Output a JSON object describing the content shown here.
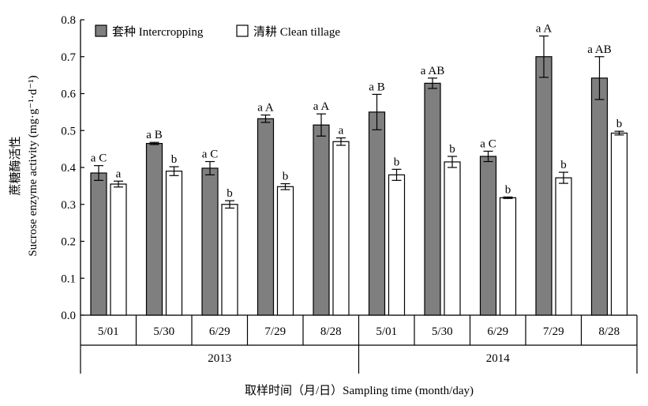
{
  "chart_data": {
    "type": "bar",
    "title": "",
    "ylabel_cn": "蔗糖酶活性",
    "ylabel_en": "Sucrose enzyme activity (mg·g⁻¹·d⁻¹)",
    "xlabel": "取样时间（月/日）Sampling time (month/day)",
    "ylim": [
      0,
      0.8
    ],
    "yticks": [
      "0.0",
      "0.1",
      "0.2",
      "0.3",
      "0.4",
      "0.5",
      "0.6",
      "0.7",
      "0.8"
    ],
    "categories": [
      "5/01",
      "5/30",
      "6/29",
      "7/29",
      "8/28",
      "5/01",
      "5/30",
      "6/29",
      "7/29",
      "8/28"
    ],
    "years": [
      {
        "label": "2013",
        "span": [
          0,
          4
        ]
      },
      {
        "label": "2014",
        "span": [
          5,
          9
        ]
      }
    ],
    "legend_position": "top-left",
    "series": [
      {
        "name": "套种 Intercropping",
        "color": "#7f7f7f",
        "values": [
          0.385,
          0.465,
          0.398,
          0.532,
          0.515,
          0.55,
          0.628,
          0.43,
          0.7,
          0.642
        ],
        "errors": [
          0.02,
          0.003,
          0.018,
          0.01,
          0.03,
          0.048,
          0.014,
          0.014,
          0.056,
          0.058
        ],
        "labels": [
          "a C",
          "a B",
          "a C",
          "a A",
          "a A",
          "a B",
          "a AB",
          "a C",
          "a A",
          "a AB"
        ]
      },
      {
        "name": "清耕 Clean tillage",
        "color": "#ffffff",
        "values": [
          0.355,
          0.39,
          0.3,
          0.348,
          0.47,
          0.38,
          0.415,
          0.318,
          0.372,
          0.493
        ],
        "errors": [
          0.008,
          0.012,
          0.01,
          0.008,
          0.01,
          0.015,
          0.015,
          0.002,
          0.015,
          0.005
        ],
        "labels": [
          "a",
          "b",
          "b",
          "b",
          "a",
          "b",
          "b",
          "b",
          "b",
          "b"
        ]
      }
    ]
  }
}
